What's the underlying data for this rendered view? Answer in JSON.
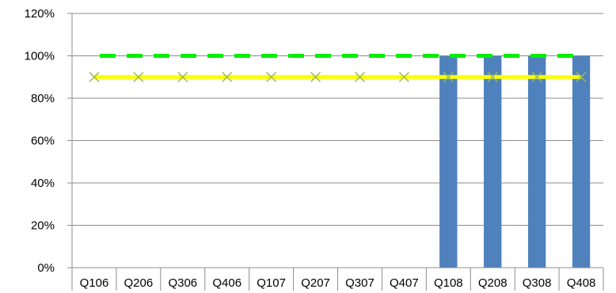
{
  "chart_data": {
    "type": "bar",
    "categories": [
      "Q106",
      "Q206",
      "Q306",
      "Q406",
      "Q107",
      "Q207",
      "Q307",
      "Q407",
      "Q108",
      "Q208",
      "Q308",
      "Q408"
    ],
    "ylim": [
      0,
      120
    ],
    "yticks": [
      "0%",
      "20%",
      "40%",
      "60%",
      "80%",
      "100%",
      "120%"
    ],
    "grid": true,
    "series": [
      {
        "type": "bar",
        "color": "#4f81bd",
        "values": [
          null,
          null,
          null,
          null,
          null,
          null,
          null,
          null,
          100,
          100,
          100,
          100
        ]
      },
      {
        "type": "line",
        "style": "dashed",
        "color": "#00ee00",
        "values": [
          100,
          100,
          100,
          100,
          100,
          100,
          100,
          100,
          100,
          100,
          100,
          100
        ]
      },
      {
        "type": "line",
        "marker": "x",
        "color": "#ffff00",
        "marker_color": "#9bbb59",
        "values": [
          90,
          90,
          90,
          90,
          90,
          90,
          90,
          90,
          90,
          90,
          90,
          90
        ]
      }
    ]
  }
}
